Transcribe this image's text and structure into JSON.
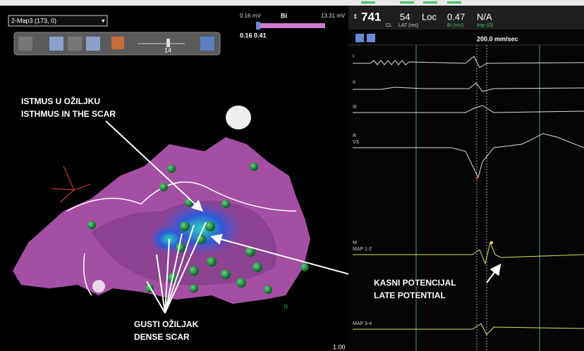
{
  "map_panel": {
    "map_selector": "2-Map3 (173, 0)",
    "scale_min": "0.16 mV",
    "scale_type": "Bi",
    "scale_max": "13.31 mV",
    "range": "0.16 0.41",
    "slider_value": "14",
    "zoom": "1.00",
    "orientation": "R"
  },
  "annotations": {
    "isthmus": [
      "ISTMUS U OŽILJKU",
      "ISTHMUS IN THE SCAR"
    ],
    "dense_scar": [
      "GUSTI OŽILJAK",
      "DENSE SCAR"
    ],
    "late_potential": [
      "KASNI POTENCIJAL",
      "LATE POTENTIAL"
    ]
  },
  "signal_panel": {
    "cl_value": "741",
    "cl_label": "CL",
    "lat_value": "54",
    "lat_label": "LAT (ms)",
    "loc": "Loc",
    "bi_value": "0.47",
    "bi_label": "Bi (mV)",
    "imp_value": "N/A",
    "imp_label": "Imp (Ω)",
    "sweep": "200.0 mm/sec",
    "channels": [
      "I",
      "II",
      "III",
      "R",
      "V3",
      "M",
      "MAP 1-2",
      "MAP 3-4"
    ]
  }
}
